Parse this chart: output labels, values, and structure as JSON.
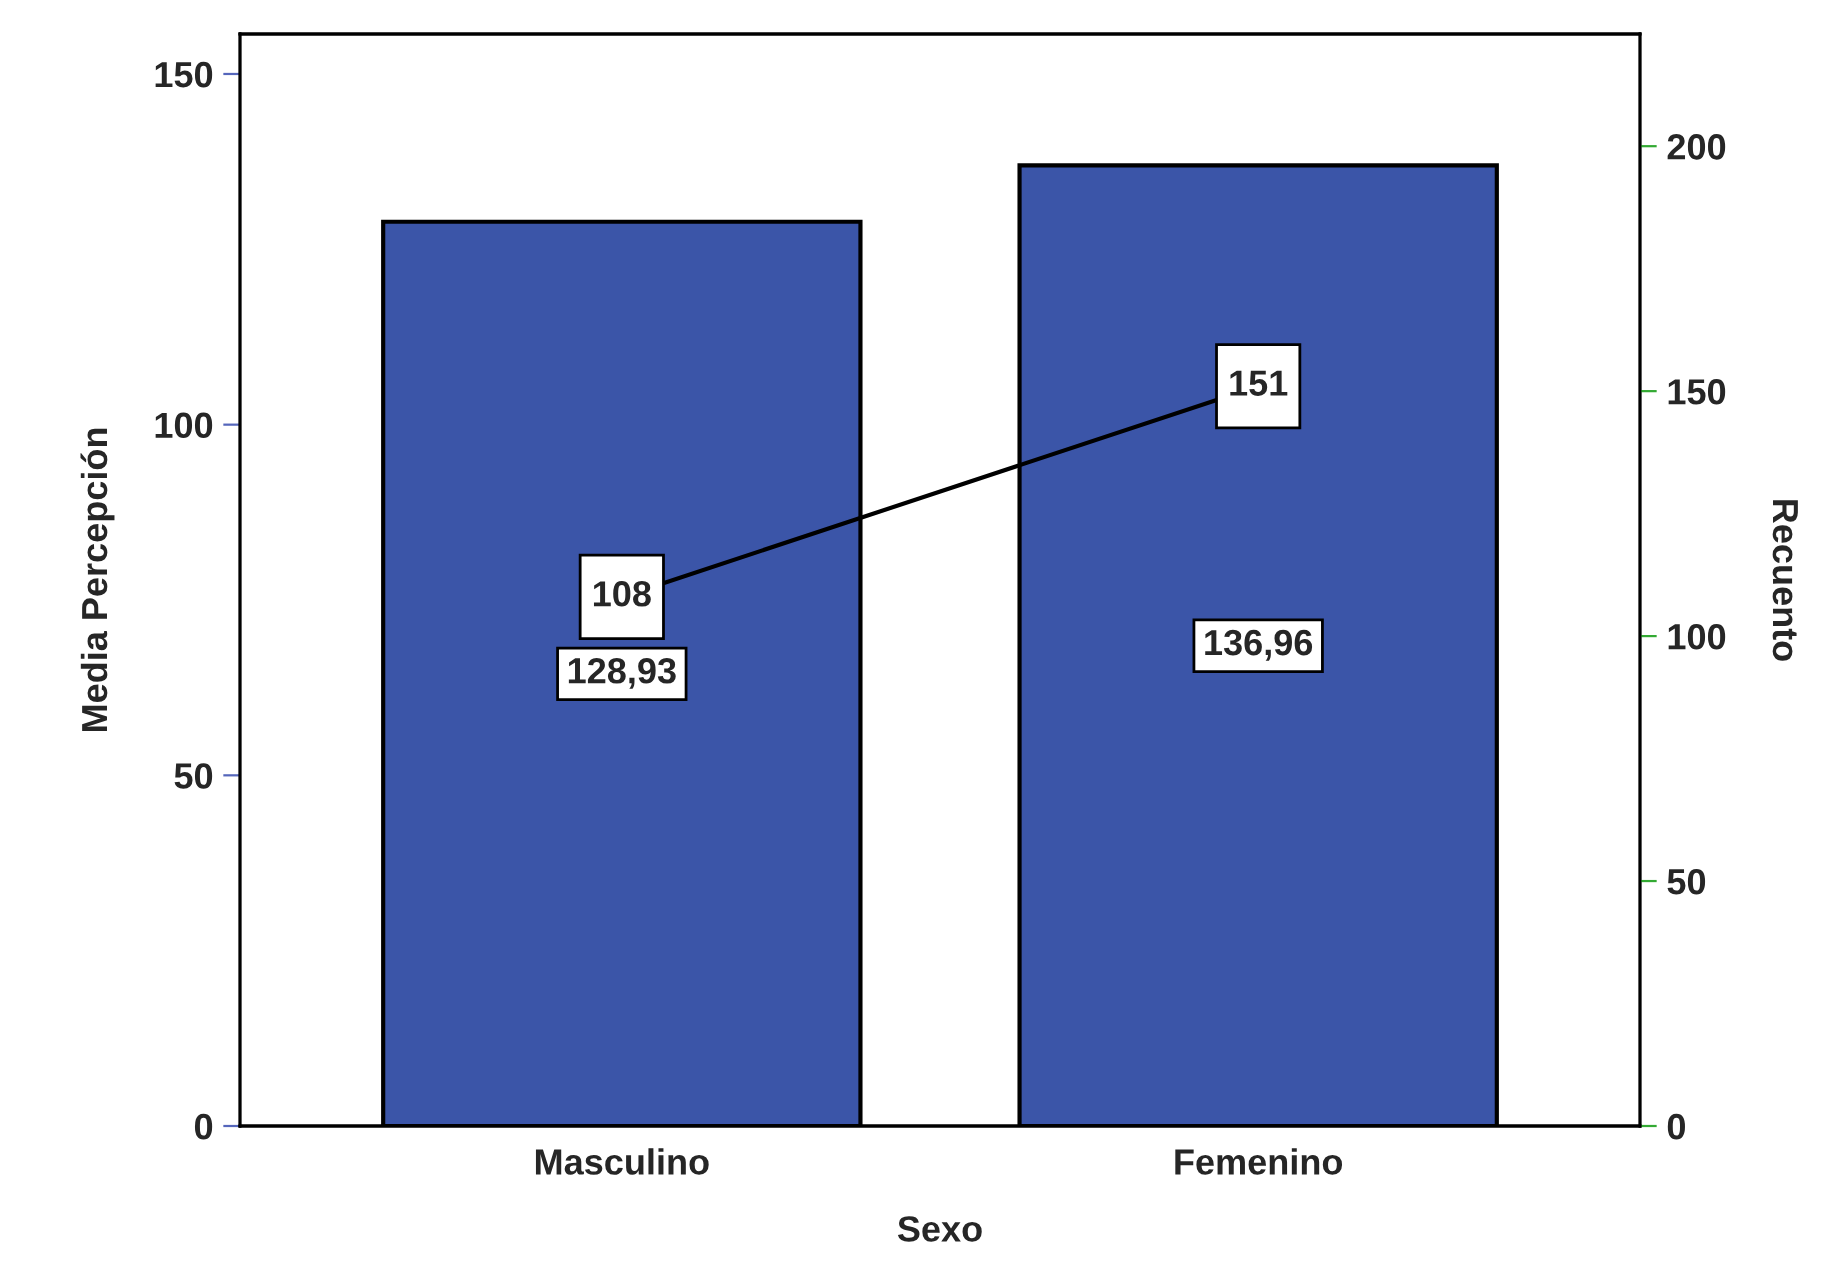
{
  "chart_data": {
    "type": "bar",
    "xlabel": "Sexo",
    "ylabel": "Media Percepción",
    "y2label": "Recuento",
    "categories": [
      "Masculino",
      "Femenino"
    ],
    "series": [
      {
        "color": "#3b55a8",
        "values": [
          128.93,
          136.96
        ],
        "value_labels": [
          "128,93",
          "136,96"
        ]
      },
      {
        "type": "line",
        "axis": "y2",
        "color": "#000000",
        "marker": "square",
        "values": [
          108,
          151
        ],
        "value_labels": [
          "108",
          "151"
        ]
      }
    ],
    "ylim": [
      0,
      155.7
    ],
    "yticks": [
      0,
      50,
      100,
      150
    ],
    "y2lim": [
      0,
      222.9
    ],
    "y2ticks": [
      0,
      50,
      100,
      150,
      200
    ],
    "grid": false,
    "legend": false,
    "line_style": "solid"
  }
}
